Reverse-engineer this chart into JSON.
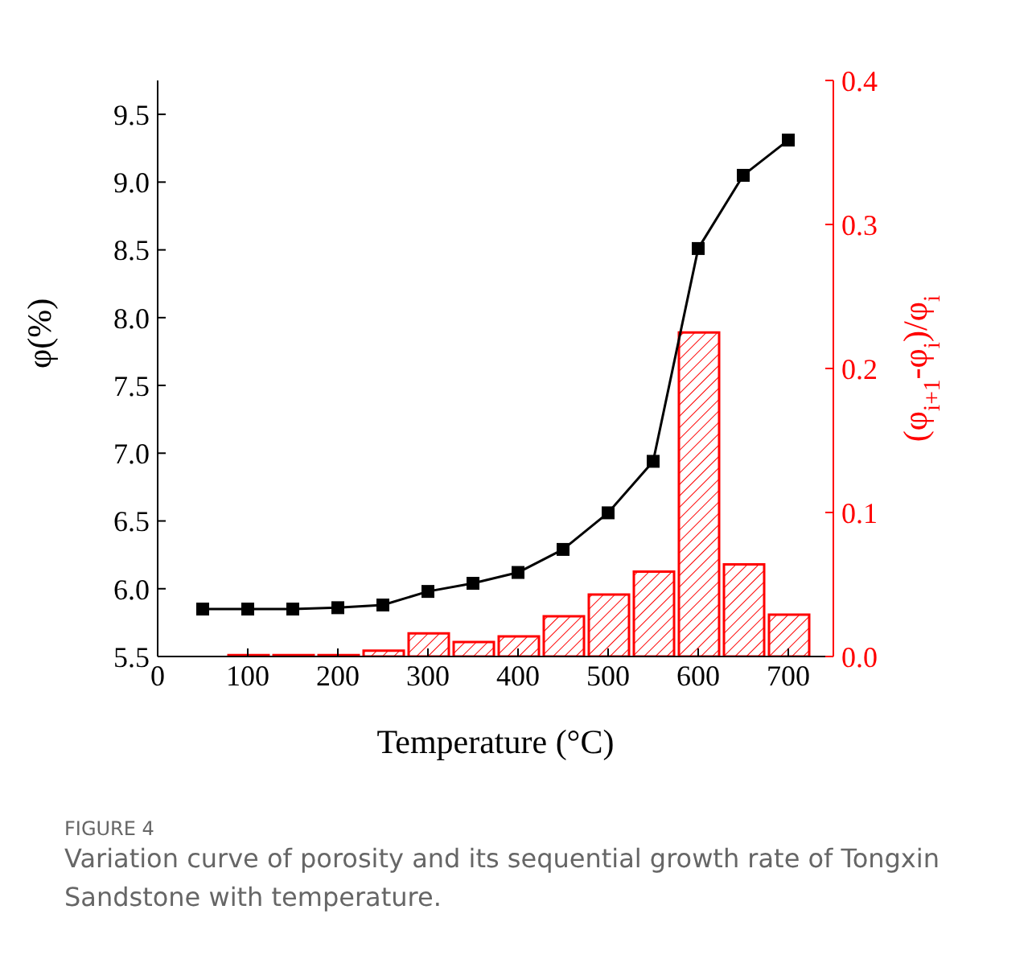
{
  "chart_data": {
    "type": "line",
    "xlabel": "Temperature (°C)",
    "ylabel": "φ(%)",
    "y2label": "(φ$_{i+1}$-φ$_{i}$)/φ$_{i}$",
    "x": [
      50,
      100,
      150,
      200,
      250,
      300,
      350,
      400,
      450,
      500,
      550,
      600,
      650,
      700
    ],
    "series": [
      {
        "color": "#000000",
        "marker": "square",
        "values": [
          5.85,
          5.85,
          5.85,
          5.86,
          5.88,
          5.98,
          6.04,
          6.12,
          6.29,
          6.56,
          6.94,
          8.51,
          9.05,
          9.31
        ]
      },
      {
        "type": "bar",
        "axis": "y2",
        "color": "#ff0000",
        "x": [
          100,
          150,
          200,
          250,
          300,
          350,
          400,
          450,
          500,
          550,
          600,
          650,
          700
        ],
        "values": [
          0.001,
          0.001,
          0.001,
          0.004,
          0.016,
          0.01,
          0.014,
          0.028,
          0.043,
          0.059,
          0.225,
          0.064,
          0.029
        ]
      }
    ],
    "xlim": [
      0,
      750
    ],
    "xticks": [
      0,
      100,
      200,
      300,
      400,
      500,
      600,
      700
    ],
    "ylim": [
      5.5,
      9.75
    ],
    "yticks": [
      5.5,
      {
        "value": 6,
        "label": "6.0"
      },
      6.5,
      {
        "value": 7,
        "label": "7.0"
      },
      7.5,
      {
        "value": 8,
        "label": "8.0"
      },
      8.5,
      {
        "value": 9,
        "label": "9.0"
      },
      9.5
    ],
    "y2lim": [
      0,
      0.4
    ],
    "y2ticks": [
      {
        "value": 0,
        "label": "0.0"
      },
      0.1,
      0.2,
      0.3,
      0.4
    ],
    "grid": false,
    "legend": false,
    "annotations": [
      "FIGURE 4",
      "Variation curve of porosity and its sequential growth rate of Tongxin Sandstone with temperature."
    ]
  }
}
